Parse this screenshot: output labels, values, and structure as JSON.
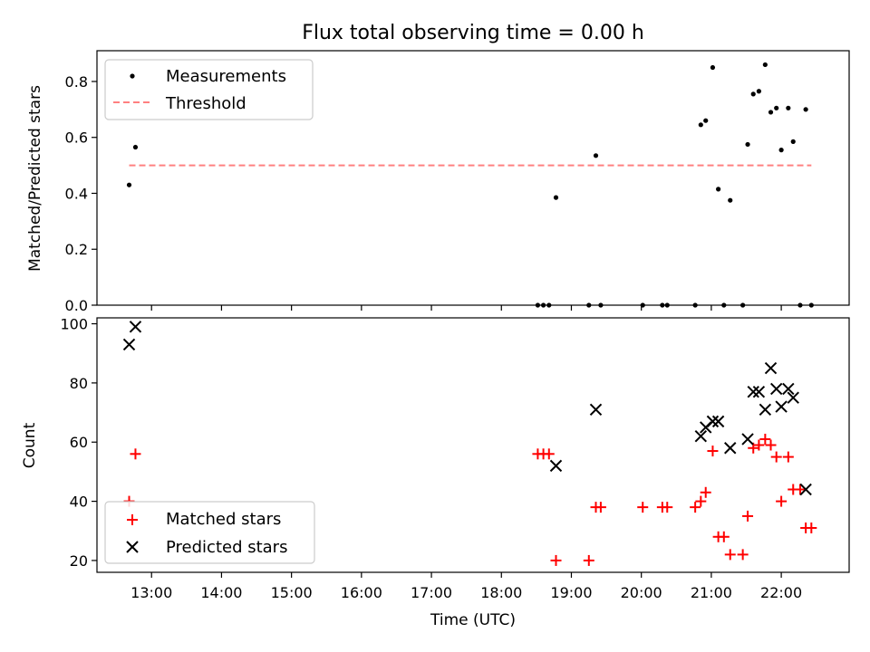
{
  "figure": {
    "title": "Flux total observing time = 0.00 h"
  },
  "chart_data": [
    {
      "type": "scatter",
      "ylabel": "Matched/Predicted stars",
      "xlabel": "",
      "xlim": [
        12.22,
        22.97
      ],
      "ylim": [
        0,
        0.91
      ],
      "yticks": [
        0.0,
        0.2,
        0.4,
        0.6,
        0.8
      ],
      "ytick_labels": [
        "0.0",
        "0.2",
        "0.4",
        "0.6",
        "0.8"
      ],
      "legend": {
        "position": "top-left",
        "entries": [
          "Measurements",
          "Threshold"
        ]
      },
      "series": [
        {
          "name": "Measurements",
          "marker": "dot",
          "color": "#000000",
          "points": [
            [
              12.68,
              0.43
            ],
            [
              12.77,
              0.565
            ],
            [
              18.52,
              0.0
            ],
            [
              18.6,
              0.0
            ],
            [
              18.68,
              0.0
            ],
            [
              18.78,
              0.385
            ],
            [
              19.25,
              0.0
            ],
            [
              19.35,
              0.535
            ],
            [
              19.42,
              0.0
            ],
            [
              20.02,
              0.0
            ],
            [
              20.3,
              0.0
            ],
            [
              20.37,
              0.0
            ],
            [
              20.77,
              0.0
            ],
            [
              20.85,
              0.645
            ],
            [
              20.92,
              0.66
            ],
            [
              21.02,
              0.85
            ],
            [
              21.1,
              0.415
            ],
            [
              21.18,
              0.0
            ],
            [
              21.27,
              0.375
            ],
            [
              21.45,
              0.0
            ],
            [
              21.52,
              0.575
            ],
            [
              21.6,
              0.755
            ],
            [
              21.68,
              0.765
            ],
            [
              21.77,
              0.86
            ],
            [
              21.85,
              0.69
            ],
            [
              21.93,
              0.705
            ],
            [
              22.0,
              0.555
            ],
            [
              22.1,
              0.705
            ],
            [
              22.17,
              0.585
            ],
            [
              22.27,
              0.0
            ],
            [
              22.35,
              0.7
            ],
            [
              22.43,
              0.0
            ]
          ]
        },
        {
          "name": "Threshold",
          "style": "dashed-line",
          "color": "#ff8080",
          "points": [
            [
              12.68,
              0.5
            ],
            [
              22.43,
              0.5
            ]
          ]
        }
      ]
    },
    {
      "type": "scatter",
      "ylabel": "Count",
      "xlabel": "Time (UTC)",
      "xlim": [
        12.22,
        22.97
      ],
      "ylim": [
        16,
        102
      ],
      "yticks": [
        20,
        40,
        60,
        80,
        100
      ],
      "xticks": [
        13,
        14,
        15,
        16,
        17,
        18,
        19,
        20,
        21,
        22
      ],
      "xtick_labels": [
        "13:00",
        "14:00",
        "15:00",
        "16:00",
        "17:00",
        "18:00",
        "19:00",
        "20:00",
        "21:00",
        "22:00"
      ],
      "legend": {
        "position": "lower-left",
        "entries": [
          "Matched stars",
          "Predicted stars"
        ]
      },
      "series": [
        {
          "name": "Matched stars",
          "marker": "plus",
          "color": "#ff0000",
          "points": [
            [
              12.68,
              40
            ],
            [
              12.77,
              56
            ],
            [
              18.52,
              56
            ],
            [
              18.6,
              56
            ],
            [
              18.68,
              56
            ],
            [
              18.78,
              20
            ],
            [
              19.25,
              20
            ],
            [
              19.35,
              38
            ],
            [
              19.42,
              38
            ],
            [
              20.02,
              38
            ],
            [
              20.3,
              38
            ],
            [
              20.37,
              38
            ],
            [
              20.77,
              38
            ],
            [
              20.85,
              40
            ],
            [
              20.92,
              43
            ],
            [
              21.02,
              57
            ],
            [
              21.1,
              28
            ],
            [
              21.18,
              28
            ],
            [
              21.27,
              22
            ],
            [
              21.45,
              22
            ],
            [
              21.52,
              35
            ],
            [
              21.6,
              58
            ],
            [
              21.68,
              59
            ],
            [
              21.77,
              61
            ],
            [
              21.85,
              59
            ],
            [
              21.93,
              55
            ],
            [
              22.0,
              40
            ],
            [
              22.1,
              55
            ],
            [
              22.17,
              44
            ],
            [
              22.27,
              44
            ],
            [
              22.35,
              31
            ],
            [
              22.43,
              31
            ]
          ]
        },
        {
          "name": "Predicted stars",
          "marker": "x",
          "color": "#000000",
          "points": [
            [
              12.68,
              93
            ],
            [
              12.77,
              99
            ],
            [
              18.78,
              52
            ],
            [
              19.35,
              71
            ],
            [
              20.85,
              62
            ],
            [
              20.92,
              65
            ],
            [
              21.02,
              67
            ],
            [
              21.1,
              67
            ],
            [
              21.27,
              58
            ],
            [
              21.52,
              61
            ],
            [
              21.6,
              77
            ],
            [
              21.68,
              77
            ],
            [
              21.77,
              71
            ],
            [
              21.85,
              85
            ],
            [
              21.93,
              78
            ],
            [
              22.0,
              72
            ],
            [
              22.1,
              78
            ],
            [
              22.17,
              75
            ],
            [
              22.35,
              44
            ]
          ]
        }
      ]
    }
  ]
}
